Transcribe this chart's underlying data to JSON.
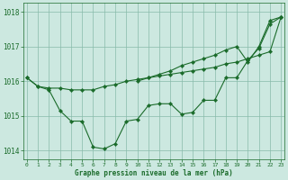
{
  "title": "Graphe pression niveau de la mer (hPa)",
  "hours": [
    0,
    1,
    2,
    3,
    4,
    5,
    6,
    7,
    8,
    9,
    10,
    11,
    12,
    13,
    14,
    15,
    16,
    17,
    18,
    19,
    20,
    21,
    22,
    23
  ],
  "series_smooth": [
    1016.1,
    1015.85,
    1015.8,
    1015.8,
    1015.75,
    1015.75,
    1015.75,
    1015.85,
    1015.9,
    1016.0,
    1016.05,
    1016.1,
    1016.15,
    1016.2,
    1016.25,
    1016.3,
    1016.35,
    1016.4,
    1016.5,
    1016.55,
    1016.65,
    1016.75,
    1016.85,
    1017.85
  ],
  "series_upper": [
    1016.1,
    null,
    null,
    null,
    null,
    null,
    null,
    null,
    null,
    null,
    1016.0,
    1016.1,
    1016.2,
    1016.3,
    1016.45,
    1016.55,
    1016.65,
    1016.75,
    1016.9,
    1017.0,
    1016.55,
    1017.0,
    1017.75,
    1017.85
  ],
  "series_lower": [
    1016.1,
    1015.85,
    1015.75,
    1015.15,
    1014.85,
    1014.85,
    1014.1,
    1014.05,
    1014.2,
    1014.85,
    1014.9,
    1015.3,
    1015.35,
    1015.35,
    1015.05,
    1015.1,
    1015.45,
    1015.45,
    1016.1,
    1016.1,
    1016.6,
    1016.95,
    1017.65,
    1017.85
  ],
  "ylim": [
    1013.75,
    1018.25
  ],
  "yticks": [
    1014,
    1015,
    1016,
    1017,
    1018
  ],
  "xlim": [
    -0.3,
    23.3
  ],
  "bg_color": "#cce8e0",
  "grid_color": "#88bbaa",
  "line_color": "#1a6b2a",
  "title_color": "#1a6b2a"
}
